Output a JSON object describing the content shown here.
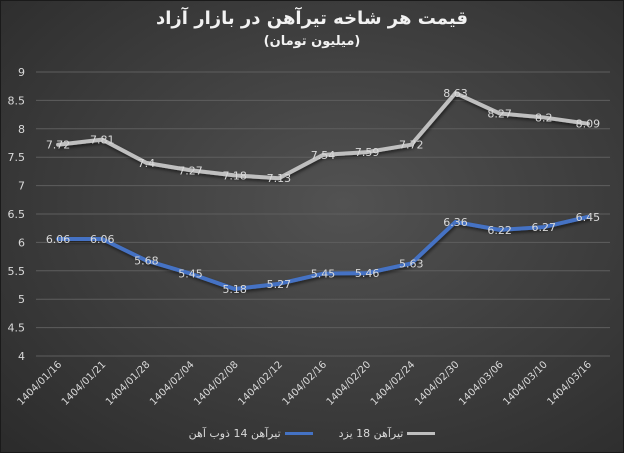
{
  "title": "قیمت هر شاخه تیرآهن در بازار آزاد",
  "subtitle": "(میلیون تومان)",
  "legend": [
    {
      "label": "تیرآهن 18 یزد",
      "color": "#bfbfbf"
    },
    {
      "label": "تیرآهن 14 ذوب آهن",
      "color": "#4472c4"
    }
  ],
  "chart_data": {
    "type": "line",
    "title": "قیمت هر شاخه تیرآهن در بازار آزاد",
    "subtitle": "(میلیون تومان)",
    "xlabel": "",
    "ylabel": "",
    "ylim": [
      4,
      9
    ],
    "y_ticks": [
      "4",
      "4.5",
      "5",
      "5.5",
      "6",
      "6.5",
      "7",
      "7.5",
      "8",
      "8.5",
      "9"
    ],
    "grid": true,
    "legend_position": "bottom",
    "categories": [
      "1404/01/16",
      "1404/01/21",
      "1404/01/28",
      "1404/02/04",
      "1404/02/08",
      "1404/02/12",
      "1404/02/16",
      "1404/02/20",
      "1404/02/24",
      "1404/02/30",
      "1404/03/06",
      "1404/03/10",
      "1404/03/16"
    ],
    "series": [
      {
        "name": "تیرآهن 18 یزد",
        "color": "#bfbfbf",
        "values": [
          7.72,
          7.81,
          7.4,
          7.27,
          7.18,
          7.13,
          7.54,
          7.59,
          7.72,
          8.63,
          8.27,
          8.2,
          8.09
        ]
      },
      {
        "name": "تیرآهن 14 ذوب آهن",
        "color": "#4472c4",
        "values": [
          6.06,
          6.06,
          5.68,
          5.45,
          5.18,
          5.27,
          5.45,
          5.46,
          5.63,
          6.36,
          6.22,
          6.27,
          6.45
        ]
      }
    ]
  }
}
